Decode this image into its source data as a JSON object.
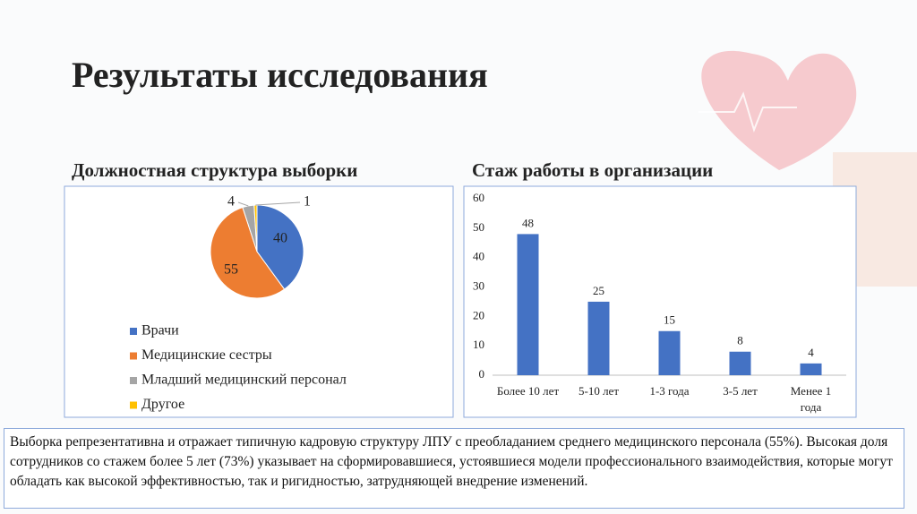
{
  "title": "Результаты исследования",
  "chart_data": [
    {
      "type": "pie",
      "title": "Должностная структура выборки",
      "categories": [
        "Врачи",
        "Медицинские сестры",
        "Младший медицинский персонал",
        "Другое"
      ],
      "values": [
        40,
        55,
        4,
        1
      ],
      "colors": [
        "#4472c4",
        "#ed7d31",
        "#a5a5a5",
        "#ffc000"
      ]
    },
    {
      "type": "bar",
      "title": "Стаж работы в организации",
      "categories": [
        "Более 10 лет",
        "5-10 лет",
        "1-3 года",
        "3-5 лет",
        "Менее 1 года"
      ],
      "values": [
        48,
        25,
        15,
        8,
        4
      ],
      "color": "#4472c4",
      "ylim": [
        0,
        60
      ],
      "yticks": [
        0,
        10,
        20,
        30,
        40,
        50,
        60
      ],
      "grid": false
    }
  ],
  "conclusion": "Выборка репрезентативна и отражает типичную кадровую структуру ЛПУ с преобладанием среднего медицинского персонала (55%). Высокая доля сотрудников со стажем более 5 лет (73%) указывает на сформировавшиеся, устоявшиеся модели профессионального взаимодействия, которые могут обладать как высокой эффективностью, так и ригидностью, затрудняющей внедрение изменений."
}
